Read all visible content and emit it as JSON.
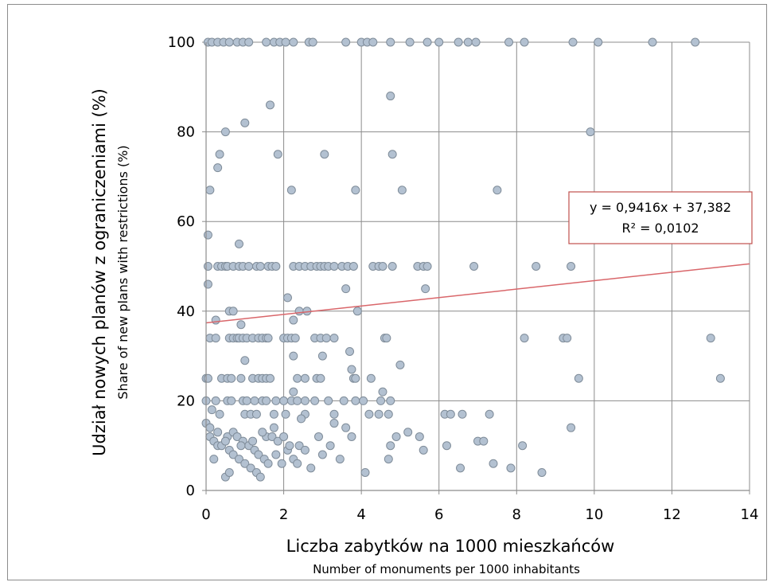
{
  "chart_data": {
    "type": "scatter",
    "xlabel": "Liczba zabytków na 1000 mieszkańców",
    "xlabel_en": "Number of monuments per 1000 inhabitants",
    "ylabel": "Udział nowych planów z ograniczeniami (%)",
    "ylabel_en": "Share of new plans with restrictions (%)",
    "xlim": [
      0,
      14
    ],
    "ylim": [
      0,
      100
    ],
    "x_ticks": [
      "0",
      "2",
      "4",
      "6",
      "8",
      "10",
      "12",
      "14"
    ],
    "y_ticks": [
      "0",
      "20",
      "40",
      "60",
      "80",
      "100"
    ],
    "grid": true,
    "marker_color": "#b3c1d1",
    "marker_edge_color": "#7f8c99",
    "trendline": {
      "slope": 0.9416,
      "intercept": 37.382,
      "color": "#d9666a",
      "equation": "y = 0,9416x + 37,382",
      "r2": "R² = 0,0102"
    },
    "series": [
      {
        "points": [
          [
            0.05,
            100
          ],
          [
            0.15,
            100
          ],
          [
            0.3,
            100
          ],
          [
            0.45,
            100
          ],
          [
            0.6,
            100
          ],
          [
            0.8,
            100
          ],
          [
            0.95,
            100
          ],
          [
            1.1,
            100
          ],
          [
            1.55,
            100
          ],
          [
            1.75,
            100
          ],
          [
            1.9,
            100
          ],
          [
            2.05,
            100
          ],
          [
            2.25,
            100
          ],
          [
            2.65,
            100
          ],
          [
            2.75,
            100
          ],
          [
            3.6,
            100
          ],
          [
            4.0,
            100
          ],
          [
            4.15,
            100
          ],
          [
            4.3,
            100
          ],
          [
            4.75,
            100
          ],
          [
            5.25,
            100
          ],
          [
            5.7,
            100
          ],
          [
            6.0,
            100
          ],
          [
            6.5,
            100
          ],
          [
            6.75,
            100
          ],
          [
            6.95,
            100
          ],
          [
            7.8,
            100
          ],
          [
            8.2,
            100
          ],
          [
            9.45,
            100
          ],
          [
            10.1,
            100
          ],
          [
            11.5,
            100
          ],
          [
            12.6,
            100
          ],
          [
            4.75,
            88
          ],
          [
            1.65,
            86
          ],
          [
            1.0,
            82
          ],
          [
            0.5,
            80
          ],
          [
            9.9,
            80
          ],
          [
            0.35,
            75
          ],
          [
            1.85,
            75
          ],
          [
            3.05,
            75
          ],
          [
            4.8,
            75
          ],
          [
            0.3,
            72
          ],
          [
            0.1,
            67
          ],
          [
            2.2,
            67
          ],
          [
            3.85,
            67
          ],
          [
            5.05,
            67
          ],
          [
            7.5,
            67
          ],
          [
            0.05,
            57
          ],
          [
            0.85,
            55
          ],
          [
            0.05,
            50
          ],
          [
            0.3,
            50
          ],
          [
            0.4,
            50
          ],
          [
            0.5,
            50
          ],
          [
            0.55,
            50
          ],
          [
            0.7,
            50
          ],
          [
            0.85,
            50
          ],
          [
            0.95,
            50
          ],
          [
            1.1,
            50
          ],
          [
            1.3,
            50
          ],
          [
            1.4,
            50
          ],
          [
            1.6,
            50
          ],
          [
            1.7,
            50
          ],
          [
            1.8,
            50
          ],
          [
            2.25,
            50
          ],
          [
            2.4,
            50
          ],
          [
            2.55,
            50
          ],
          [
            2.7,
            50
          ],
          [
            2.85,
            50
          ],
          [
            2.95,
            50
          ],
          [
            3.05,
            50
          ],
          [
            3.15,
            50
          ],
          [
            3.3,
            50
          ],
          [
            3.5,
            50
          ],
          [
            3.65,
            50
          ],
          [
            3.8,
            50
          ],
          [
            4.3,
            50
          ],
          [
            4.45,
            50
          ],
          [
            4.55,
            50
          ],
          [
            4.8,
            50
          ],
          [
            5.45,
            50
          ],
          [
            5.6,
            50
          ],
          [
            5.7,
            50
          ],
          [
            6.9,
            50
          ],
          [
            8.5,
            50
          ],
          [
            9.4,
            50
          ],
          [
            0.05,
            46
          ],
          [
            3.6,
            45
          ],
          [
            5.65,
            45
          ],
          [
            2.1,
            43
          ],
          [
            0.6,
            40
          ],
          [
            0.7,
            40
          ],
          [
            2.4,
            40
          ],
          [
            2.6,
            40
          ],
          [
            3.9,
            40
          ],
          [
            0.25,
            38
          ],
          [
            2.25,
            38
          ],
          [
            0.9,
            37
          ],
          [
            0.1,
            34
          ],
          [
            0.25,
            34
          ],
          [
            0.6,
            34
          ],
          [
            0.7,
            34
          ],
          [
            0.8,
            34
          ],
          [
            0.85,
            34
          ],
          [
            0.95,
            34
          ],
          [
            1.05,
            34
          ],
          [
            1.2,
            34
          ],
          [
            1.35,
            34
          ],
          [
            1.45,
            34
          ],
          [
            1.55,
            34
          ],
          [
            1.6,
            34
          ],
          [
            2.0,
            34
          ],
          [
            2.1,
            34
          ],
          [
            2.2,
            34
          ],
          [
            2.3,
            34
          ],
          [
            2.8,
            34
          ],
          [
            2.95,
            34
          ],
          [
            3.1,
            34
          ],
          [
            3.3,
            34
          ],
          [
            4.6,
            34
          ],
          [
            4.65,
            34
          ],
          [
            8.2,
            34
          ],
          [
            9.2,
            34
          ],
          [
            9.3,
            34
          ],
          [
            13.0,
            34
          ],
          [
            3.7,
            31
          ],
          [
            2.25,
            30
          ],
          [
            3.0,
            30
          ],
          [
            1.0,
            29
          ],
          [
            5.0,
            28
          ],
          [
            3.75,
            27
          ],
          [
            0.0,
            25
          ],
          [
            0.05,
            25
          ],
          [
            0.4,
            25
          ],
          [
            0.55,
            25
          ],
          [
            0.65,
            25
          ],
          [
            0.9,
            25
          ],
          [
            1.2,
            25
          ],
          [
            1.35,
            25
          ],
          [
            1.45,
            25
          ],
          [
            1.55,
            25
          ],
          [
            1.65,
            25
          ],
          [
            2.35,
            25
          ],
          [
            2.55,
            25
          ],
          [
            2.85,
            25
          ],
          [
            2.95,
            25
          ],
          [
            3.8,
            25
          ],
          [
            3.85,
            25
          ],
          [
            4.25,
            25
          ],
          [
            9.6,
            25
          ],
          [
            13.25,
            25
          ],
          [
            4.55,
            22
          ],
          [
            2.25,
            22
          ],
          [
            0.0,
            20
          ],
          [
            0.25,
            20
          ],
          [
            0.55,
            20
          ],
          [
            0.65,
            20
          ],
          [
            0.95,
            20
          ],
          [
            1.05,
            20
          ],
          [
            1.25,
            20
          ],
          [
            1.45,
            20
          ],
          [
            1.55,
            20
          ],
          [
            1.8,
            20
          ],
          [
            2.0,
            20
          ],
          [
            2.2,
            20
          ],
          [
            2.35,
            20
          ],
          [
            2.55,
            20
          ],
          [
            2.8,
            20
          ],
          [
            3.15,
            20
          ],
          [
            3.55,
            20
          ],
          [
            3.85,
            20
          ],
          [
            4.05,
            20
          ],
          [
            4.5,
            20
          ],
          [
            4.75,
            20
          ],
          [
            0.15,
            18
          ],
          [
            0.35,
            17
          ],
          [
            1.0,
            17
          ],
          [
            1.15,
            17
          ],
          [
            1.3,
            17
          ],
          [
            1.75,
            17
          ],
          [
            2.05,
            17
          ],
          [
            2.55,
            17
          ],
          [
            3.3,
            17
          ],
          [
            4.2,
            17
          ],
          [
            4.45,
            17
          ],
          [
            4.7,
            17
          ],
          [
            6.15,
            17
          ],
          [
            6.3,
            17
          ],
          [
            6.6,
            17
          ],
          [
            7.3,
            17
          ],
          [
            2.45,
            16
          ],
          [
            0.0,
            15
          ],
          [
            0.1,
            14
          ],
          [
            0.3,
            13
          ],
          [
            0.55,
            12
          ],
          [
            0.7,
            13
          ],
          [
            0.8,
            12
          ],
          [
            0.95,
            11
          ],
          [
            1.1,
            10
          ],
          [
            1.25,
            9
          ],
          [
            1.35,
            8
          ],
          [
            1.5,
            7
          ],
          [
            1.6,
            6
          ],
          [
            1.8,
            8
          ],
          [
            1.95,
            6
          ],
          [
            2.1,
            9
          ],
          [
            2.25,
            7
          ],
          [
            2.4,
            10
          ],
          [
            2.55,
            9
          ],
          [
            2.7,
            5
          ],
          [
            0.1,
            12
          ],
          [
            0.2,
            11
          ],
          [
            0.3,
            10
          ],
          [
            0.4,
            10
          ],
          [
            0.5,
            11
          ],
          [
            0.6,
            9
          ],
          [
            0.7,
            8
          ],
          [
            0.85,
            7
          ],
          [
            1.0,
            6
          ],
          [
            1.15,
            5
          ],
          [
            1.3,
            4
          ],
          [
            1.4,
            3
          ],
          [
            1.55,
            12
          ],
          [
            1.7,
            12
          ],
          [
            1.85,
            11
          ],
          [
            2.0,
            12
          ],
          [
            2.15,
            10
          ],
          [
            2.35,
            6
          ],
          [
            0.2,
            7
          ],
          [
            0.5,
            3
          ],
          [
            0.6,
            4
          ],
          [
            0.9,
            10
          ],
          [
            1.2,
            11
          ],
          [
            1.45,
            13
          ],
          [
            1.75,
            14
          ],
          [
            2.9,
            12
          ],
          [
            3.2,
            10
          ],
          [
            3.45,
            7
          ],
          [
            3.6,
            14
          ],
          [
            3.75,
            12
          ],
          [
            4.1,
            4
          ],
          [
            4.7,
            7
          ],
          [
            4.75,
            10
          ],
          [
            4.9,
            12
          ],
          [
            5.2,
            13
          ],
          [
            5.5,
            12
          ],
          [
            5.6,
            9
          ],
          [
            6.2,
            10
          ],
          [
            6.55,
            5
          ],
          [
            7.0,
            11
          ],
          [
            7.15,
            11
          ],
          [
            7.4,
            6
          ],
          [
            7.85,
            5
          ],
          [
            8.15,
            10
          ],
          [
            8.65,
            4
          ],
          [
            9.4,
            14
          ],
          [
            3.0,
            8
          ],
          [
            3.3,
            15
          ]
        ]
      }
    ]
  }
}
